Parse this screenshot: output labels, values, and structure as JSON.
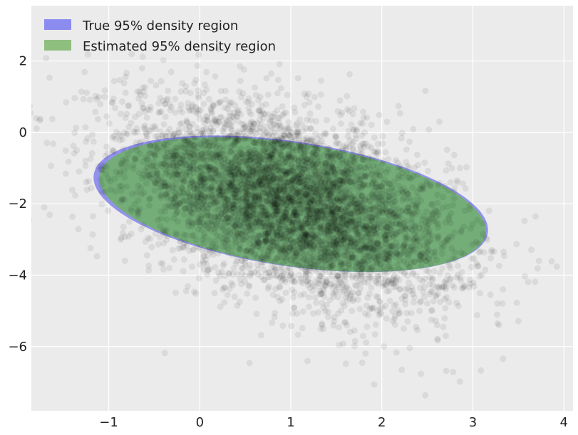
{
  "chart_data": {
    "type": "scatter",
    "title": "",
    "xlabel": "",
    "ylabel": "",
    "xlim": [
      -1.85,
      4.1
    ],
    "ylim": [
      -7.8,
      3.55
    ],
    "x_ticks": [
      -1,
      0,
      1,
      2,
      3,
      4
    ],
    "y_ticks": [
      2,
      0,
      -2,
      -4,
      -6
    ],
    "x_tick_labels": [
      "−1",
      "0",
      "1",
      "2",
      "3",
      "4"
    ],
    "y_tick_labels": [
      "2",
      "0",
      "−2",
      "−4",
      "−6"
    ],
    "grid": true,
    "background_color": "#ebebeb",
    "legend": {
      "placement": "top-left",
      "entries": [
        {
          "label": "True 95% density region",
          "color": "#8c8cf0"
        },
        {
          "label": "Estimated 95% density region",
          "color": "#8fbf7f"
        }
      ]
    },
    "regions": [
      {
        "name": "True 95% density region",
        "type": "ellipse",
        "center": [
          1.0,
          -2.0
        ],
        "semi_axes": [
          2.42,
          1.58
        ],
        "angle_deg": -36,
        "color": "#7474ee",
        "alpha": 0.75
      },
      {
        "name": "Estimated 95% density region",
        "type": "ellipse",
        "center": [
          1.02,
          -2.02
        ],
        "semi_axes": [
          2.38,
          1.55
        ],
        "angle_deg": -36.5,
        "color": "#6fb068",
        "alpha": 0.88
      }
    ],
    "scatter": {
      "color": "#000000",
      "alpha": 0.07,
      "n_points": 5000,
      "mean": [
        1.0,
        -2.0
      ],
      "covariance": [
        [
          0.8,
          -0.6
        ],
        [
          -0.6,
          2.0
        ]
      ]
    }
  }
}
